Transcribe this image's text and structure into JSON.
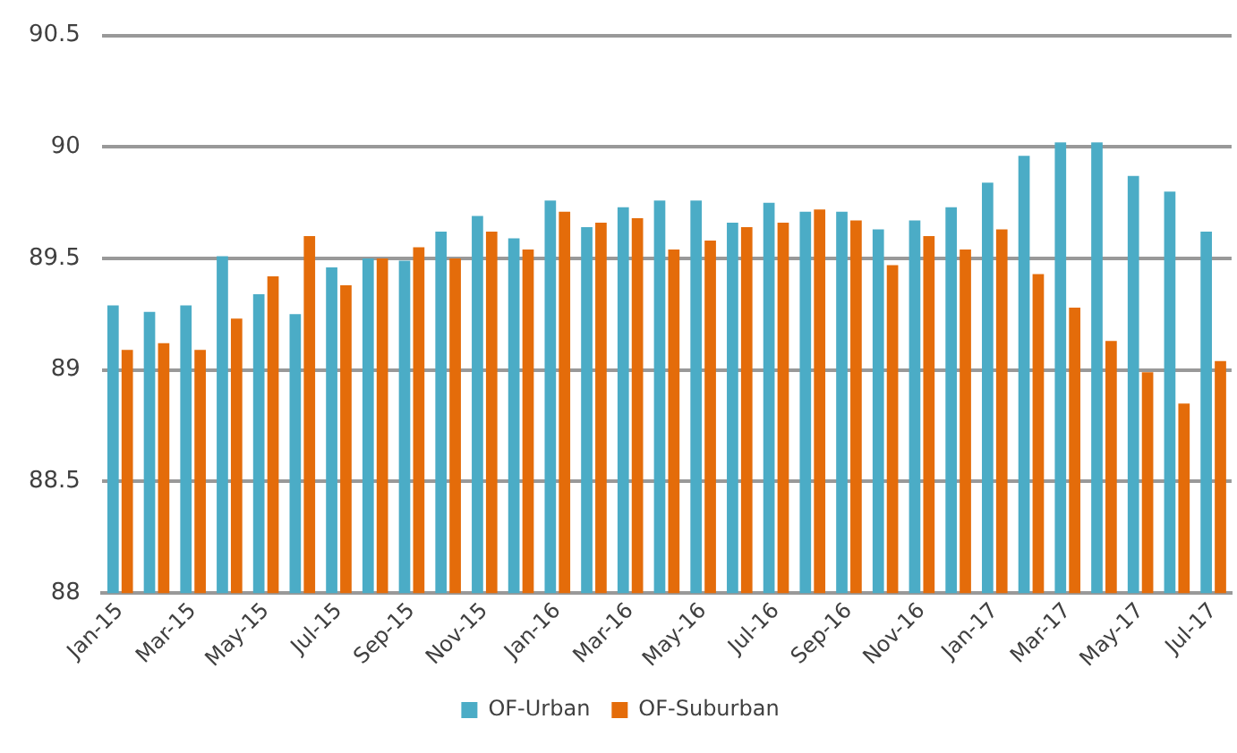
{
  "chart_data": {
    "type": "bar",
    "categories": [
      "Jan-15",
      null,
      "Mar-15",
      null,
      "May-15",
      null,
      "Jul-15",
      null,
      "Sep-15",
      null,
      "Nov-15",
      null,
      "Jan-16",
      null,
      "Mar-16",
      null,
      "May-16",
      null,
      "Jul-16",
      null,
      "Sep-16",
      null,
      "Nov-16",
      null,
      "Jan-17",
      null,
      "Mar-17",
      null,
      "May-17",
      null,
      "Jul-17"
    ],
    "series": [
      {
        "name": "OF-Urban",
        "color": "#4bacc6",
        "values": [
          89.29,
          89.26,
          89.29,
          89.51,
          89.34,
          89.25,
          89.46,
          89.5,
          89.49,
          89.62,
          89.69,
          89.59,
          89.76,
          89.64,
          89.73,
          89.76,
          89.76,
          89.66,
          89.75,
          89.71,
          89.71,
          89.63,
          89.67,
          89.73,
          89.84,
          89.96,
          90.02,
          90.02,
          89.87,
          89.8,
          89.62
        ]
      },
      {
        "name": "OF-Suburban",
        "color": "#e46c0a",
        "values": [
          89.09,
          89.12,
          89.09,
          89.23,
          89.42,
          89.6,
          89.38,
          89.5,
          89.55,
          89.5,
          89.62,
          89.54,
          89.71,
          89.66,
          89.68,
          89.54,
          89.58,
          89.64,
          89.66,
          89.72,
          89.67,
          89.47,
          89.6,
          89.54,
          89.63,
          89.43,
          89.28,
          89.13,
          88.99,
          88.85,
          89.04
        ]
      }
    ],
    "ylim": [
      88,
      90.5
    ],
    "yticks": [
      88,
      88.5,
      89,
      89.5,
      90,
      90.5
    ],
    "grid": "y",
    "legend": "bottom"
  }
}
